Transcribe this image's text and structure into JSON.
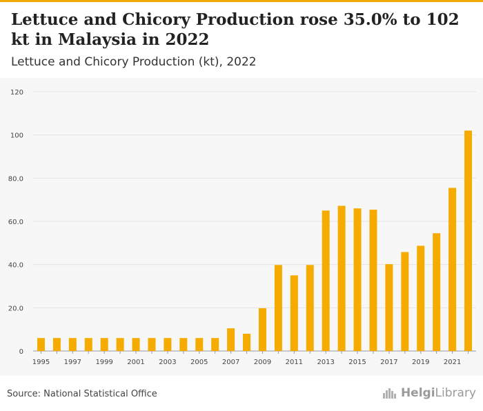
{
  "header": {
    "title": "Lettuce and Chicory Production rose 35.0% to 102 kt in Malaysia in 2022",
    "subtitle": "Lettuce and Chicory Production (kt), 2022"
  },
  "footer": {
    "source": "Source: National Statistical Office",
    "logo_text_bold": "Helgi",
    "logo_text": "Library"
  },
  "colors": {
    "bar": "#f5ab00",
    "accent": "#f2a900",
    "grid": "#e3e3e3"
  },
  "chart_data": {
    "type": "bar",
    "title": "Lettuce and Chicory Production (kt), 2022",
    "xlabel": "",
    "ylabel": "",
    "categories": [
      "1995",
      "1996",
      "1997",
      "1998",
      "1999",
      "2000",
      "2001",
      "2002",
      "2003",
      "2004",
      "2005",
      "2006",
      "2007",
      "2008",
      "2009",
      "2010",
      "2011",
      "2012",
      "2013",
      "2014",
      "2015",
      "2016",
      "2017",
      "2018",
      "2019",
      "2020",
      "2021",
      "2022"
    ],
    "values": [
      6,
      6,
      6,
      6,
      6,
      6,
      6,
      6,
      6,
      6,
      6,
      6,
      10.5,
      8,
      19.8,
      39.8,
      35,
      39.8,
      65,
      67.2,
      66,
      65.4,
      40.2,
      45.8,
      48.7,
      54.5,
      75.5,
      102
    ],
    "ylim": [
      0,
      120
    ],
    "yticks": [
      0,
      20,
      40,
      60,
      80,
      100,
      120
    ],
    "ytick_labels": [
      "0",
      "20.0",
      "40.0",
      "60.0",
      "80.0",
      "100",
      "120"
    ],
    "xtick_labels": [
      "1995",
      "1997",
      "1999",
      "2001",
      "2003",
      "2005",
      "2007",
      "2009",
      "2011",
      "2013",
      "2015",
      "2017",
      "2019",
      "2021"
    ],
    "grid": true,
    "legend": "none"
  }
}
